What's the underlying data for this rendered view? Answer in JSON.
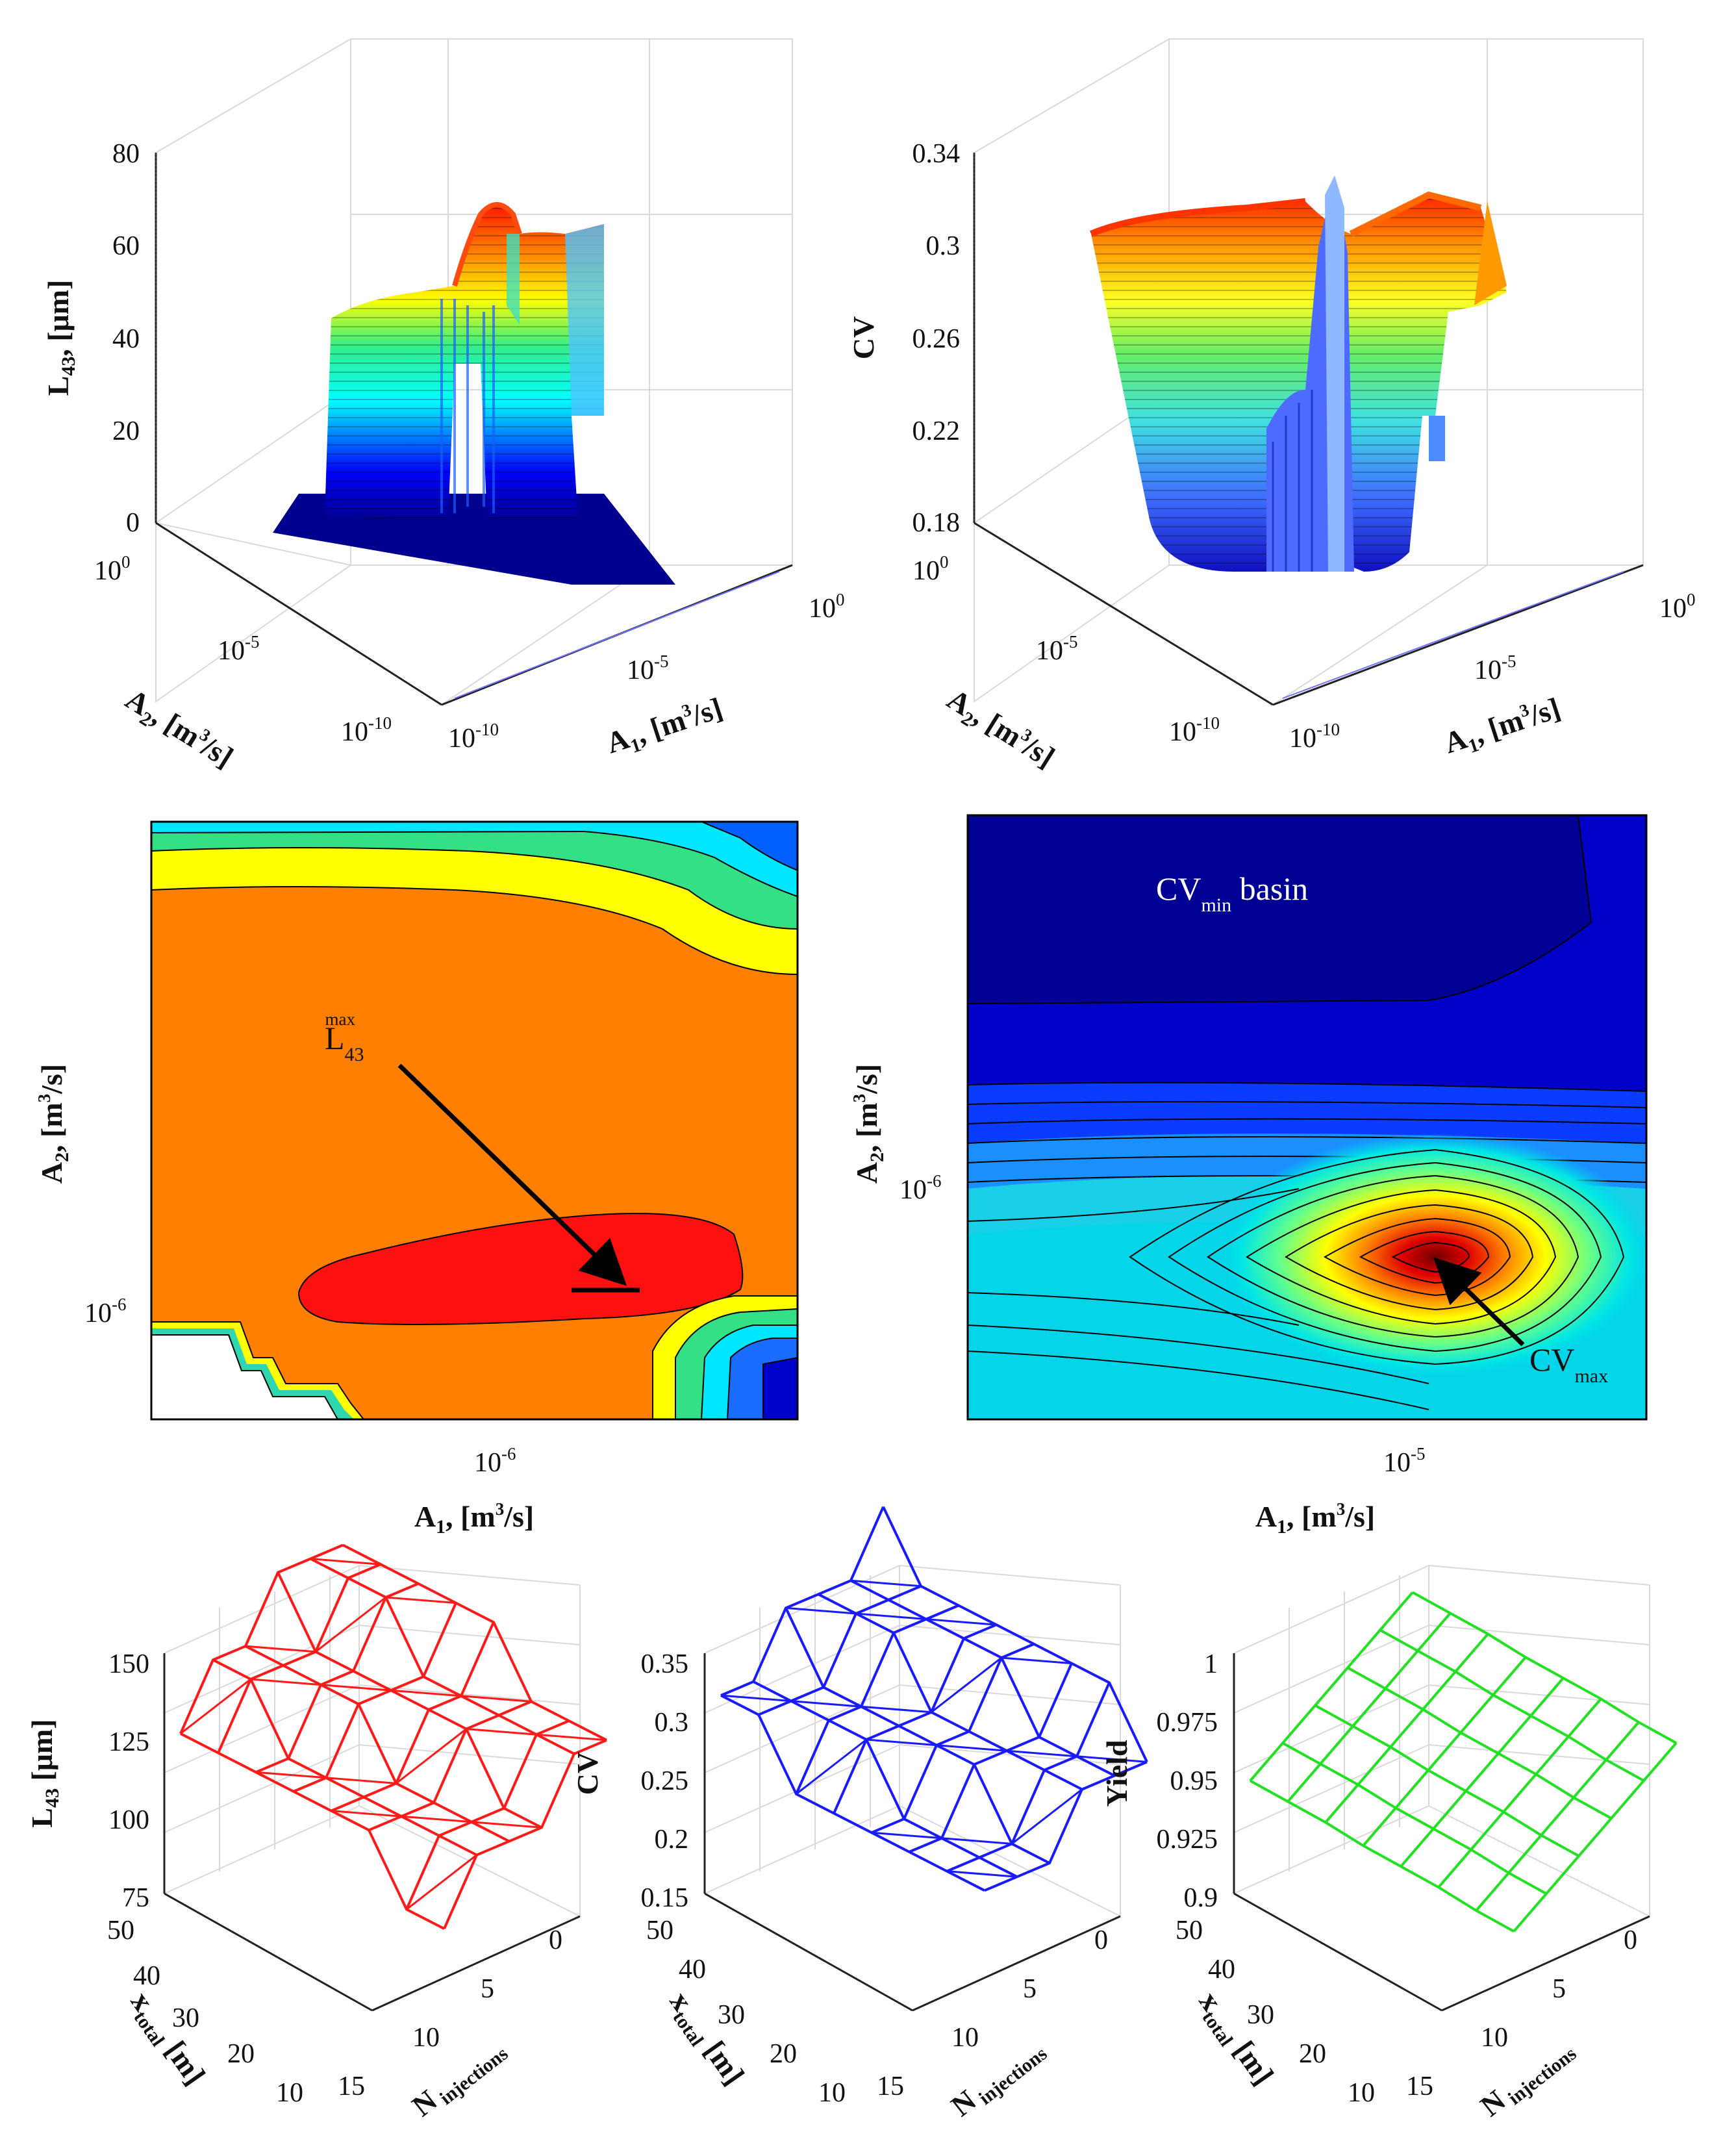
{
  "chart_data": [
    {
      "id": "top-left-surface",
      "type": "surface3d",
      "title": "",
      "zlabel": "L43, [μm]",
      "xlabel": "A1, [m3/s]",
      "ylabel": "A2, [m3/s]",
      "zticks": [
        "80",
        "60",
        "40",
        "20",
        "0"
      ],
      "xticks": [
        "10-10",
        "10-5",
        "100"
      ],
      "yticks": [
        "100",
        "10-5",
        "10-10"
      ],
      "zlim": [
        0,
        80
      ],
      "note": "ridge surface, peak near 70 μm"
    },
    {
      "id": "top-right-surface",
      "type": "surface3d",
      "title": "",
      "zlabel": "CV",
      "xlabel": "A1, [m3/s]",
      "ylabel": "A2, [m3/s]",
      "zticks": [
        "0.34",
        "0.3",
        "0.26",
        "0.22",
        "0.18"
      ],
      "xticks": [
        "10-10",
        "10-5",
        "100"
      ],
      "yticks": [
        "100",
        "10-5",
        "10-10"
      ],
      "zlim": [
        0.18,
        0.34
      ],
      "note": "plateau near 0.31 with sharp spike near 0.33"
    },
    {
      "id": "middle-left-contour",
      "type": "contour",
      "xlabel": "A1, [m3/s]",
      "ylabel": "A2, [m3/s]",
      "xticks": [
        "10-6"
      ],
      "yticks": [
        "10-6"
      ],
      "annotation": "L43 max",
      "annotation_parts": {
        "base": "L",
        "sub": "43",
        "sup": "max"
      }
    },
    {
      "id": "middle-right-contour",
      "type": "contour",
      "xlabel": "A1, [m3/s]",
      "ylabel": "A2, [m3/s]",
      "xticks": [
        "10-5"
      ],
      "yticks": [
        "10-6"
      ],
      "annotations": [
        "CVmin basin",
        "CVmax"
      ],
      "annotation_parts": {
        "basin": {
          "base": "CV",
          "sub": "min",
          "rest": "basin"
        },
        "max": {
          "base": "CV",
          "sub": "max"
        }
      }
    },
    {
      "id": "bottom-left-mesh",
      "type": "mesh3d",
      "zlabel": "L43 [μm]",
      "xlabel": "N injections",
      "ylabel": "x total [m]",
      "zticks": [
        "150",
        "125",
        "100",
        "75"
      ],
      "zlim": [
        75,
        150
      ],
      "yticks": [
        "50",
        "40",
        "30",
        "20",
        "10"
      ],
      "xticks": [
        "15",
        "10",
        "5",
        "0"
      ],
      "color": "#ff1a1a"
    },
    {
      "id": "bottom-middle-mesh",
      "type": "mesh3d",
      "zlabel": "CV",
      "xlabel": "N injections",
      "ylabel": "x total [m]",
      "zticks": [
        "0.35",
        "0.3",
        "0.25",
        "0.2",
        "0.15"
      ],
      "zlim": [
        0.15,
        0.35
      ],
      "yticks": [
        "50",
        "40",
        "30",
        "20",
        "10"
      ],
      "xticks": [
        "15",
        "10",
        "5",
        "0"
      ],
      "color": "#1a1aff"
    },
    {
      "id": "bottom-right-mesh",
      "type": "mesh3d",
      "zlabel": "Yield",
      "xlabel": "N injections",
      "ylabel": "x total [m]",
      "zticks": [
        "1",
        "0.975",
        "0.95",
        "0.925",
        "0.9"
      ],
      "zlim": [
        0.9,
        1.0
      ],
      "yticks": [
        "50",
        "40",
        "30",
        "20",
        "10"
      ],
      "xticks": [
        "15",
        "10",
        "5",
        "0"
      ],
      "color": "#22e022"
    }
  ],
  "colors": {
    "jet_dark_blue": "#00008f",
    "jet_blue": "#0000ff",
    "jet_cyan": "#00ffff",
    "jet_green": "#22dd88",
    "jet_yellow": "#ffff00",
    "jet_orange": "#ff8000",
    "jet_red": "#ff0000",
    "jet_dark_red": "#800000"
  }
}
